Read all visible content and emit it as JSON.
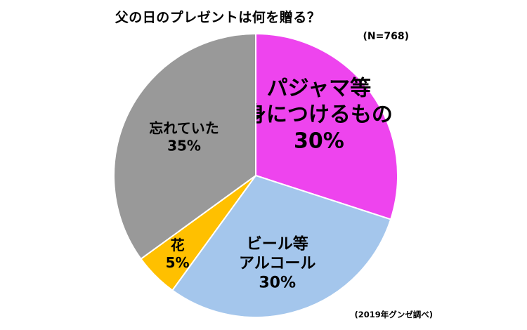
{
  "chart_data": {
    "type": "pie",
    "title": "父の日のプレゼントは何を贈る？",
    "subtitle": "(N=768)",
    "source": "(2019年グンゼ調べ)",
    "slices": [
      {
        "lines": [
          "パジャマ等",
          "身につけるもの",
          "30%"
        ],
        "value": 30,
        "color": "#ee44ee"
      },
      {
        "lines": [
          "ビール等",
          "アルコール",
          "30%"
        ],
        "value": 30,
        "color": "#a4c6ec"
      },
      {
        "lines": [
          "花",
          "5%"
        ],
        "value": 5,
        "color": "#ffc000"
      },
      {
        "lines": [
          "忘れていた",
          "35%"
        ],
        "value": 35,
        "color": "#999999"
      }
    ]
  }
}
